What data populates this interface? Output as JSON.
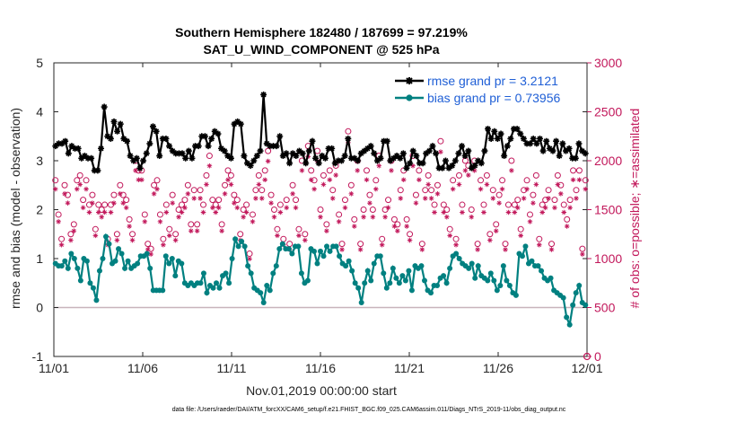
{
  "chart_data": {
    "type": "line",
    "title_line1": "Southern Hemisphere 182480 / 187699 = 97.219%",
    "title_line2": "SAT_U_WIND_COMPONENT @ 525 hPa",
    "xlabel": "Nov.01,2019 00:00:00 start",
    "ylabel_left": "rmse and bias (model - observation)",
    "ylabel_right": "# of obs: o=possible; ∗=assimilated",
    "x_tick_labels": [
      "11/01",
      "11/06",
      "11/11",
      "11/16",
      "11/21",
      "11/26",
      "12/01"
    ],
    "x_tick_days": [
      0,
      5,
      10,
      15,
      20,
      25,
      30
    ],
    "xlim": [
      0,
      30
    ],
    "ylim_left": [
      -1,
      5
    ],
    "ylim_right": [
      0,
      3000
    ],
    "y_ticks_left": [
      -1,
      0,
      1,
      2,
      3,
      4,
      5
    ],
    "y_ticks_right": [
      0,
      500,
      1000,
      1500,
      2000,
      2500,
      3000
    ],
    "footer": "data file: /Users/raeder/DAI/ATM_forcXX/CAM6_setup/f.e21.FHIST_BGC.f09_025.CAM6assim.011/Diags_NTrS_2019-11/obs_diag_output.nc",
    "legend": [
      "rmse grand pr = 3.2121",
      "bias grand pr = 0.73956"
    ],
    "colors": {
      "rmse": "#000000",
      "bias": "#008080",
      "obs": "#c2185b",
      "zero": "#c8b4bc",
      "legend_text": "#1f5fd6"
    },
    "series": [
      {
        "name": "rmse",
        "values": [
          3.3,
          3.35,
          3.35,
          3.4,
          3.15,
          3.3,
          3.25,
          3.25,
          3.05,
          3.1,
          3.05,
          3.05,
          2.8,
          2.8,
          3.25,
          4.1,
          3.5,
          3.45,
          3.8,
          3.6,
          3.75,
          3.45,
          3.4,
          3.1,
          3.0,
          3.05,
          2.85,
          3.0,
          3.15,
          3.35,
          3.7,
          3.6,
          3.1,
          3.45,
          3.45,
          3.3,
          3.2,
          3.15,
          3.15,
          3.15,
          3.05,
          3.2,
          3.05,
          3.3,
          3.3,
          3.5,
          3.5,
          3.3,
          3.45,
          3.6,
          3.55,
          3.25,
          3.2,
          3.1,
          3.05,
          3.75,
          3.8,
          3.75,
          3.1,
          2.95,
          2.9,
          3.0,
          3.1,
          3.2,
          4.35,
          3.35,
          3.3,
          3.3,
          3.3,
          3.5,
          3.1,
          3.15,
          2.95,
          3.15,
          3.1,
          3.2,
          3.15,
          2.95,
          3.2,
          3.4,
          3.05,
          2.95,
          3.1,
          3.05,
          3.25,
          3.25,
          2.95,
          3.0,
          3.0,
          3.1,
          3.45,
          3.05,
          3.05,
          3.0,
          3.15,
          3.2,
          3.25,
          3.3,
          3.15,
          3.0,
          3.05,
          3.4,
          3.4,
          3.0,
          3.05,
          3.1,
          3.05,
          3.15,
          2.85,
          2.95,
          3.2,
          3.1,
          2.95,
          2.95,
          3.15,
          3.2,
          3.3,
          3.15,
          2.85,
          2.85,
          3.0,
          2.85,
          2.9,
          3.0,
          3.15,
          3.3,
          3.1,
          3.2,
          2.85,
          2.9,
          3.0,
          2.95,
          3.2,
          3.65,
          3.45,
          3.6,
          3.45,
          3.55,
          3.1,
          3.3,
          3.45,
          3.65,
          3.65,
          3.55,
          3.45,
          3.35,
          3.35,
          3.45,
          3.35,
          3.45,
          3.2,
          3.4,
          3.25,
          3.2,
          3.4,
          3.1,
          3.35,
          3.2,
          3.25,
          3.05,
          3.05,
          3.35,
          3.2,
          3.15
        ]
      },
      {
        "name": "bias",
        "values": [
          0.9,
          0.85,
          0.85,
          0.95,
          0.8,
          1.1,
          1.0,
          0.8,
          0.55,
          1.0,
          0.95,
          0.5,
          0.4,
          0.15,
          0.75,
          1.0,
          1.45,
          1.3,
          0.9,
          0.95,
          1.2,
          1.1,
          0.8,
          0.95,
          0.8,
          0.85,
          0.9,
          1.05,
          1.05,
          1.1,
          0.8,
          0.35,
          0.35,
          0.35,
          0.35,
          1.05,
          0.9,
          1.0,
          0.65,
          0.95,
          0.9,
          0.5,
          0.45,
          0.5,
          0.45,
          0.5,
          0.5,
          0.7,
          0.3,
          0.45,
          0.4,
          0.5,
          0.4,
          0.65,
          0.7,
          0.5,
          1.0,
          1.4,
          1.25,
          1.35,
          1.25,
          0.85,
          0.7,
          0.4,
          0.35,
          0.3,
          0.1,
          0.45,
          0.35,
          0.7,
          0.85,
          1.2,
          1.3,
          1.2,
          1.2,
          1.1,
          1.25,
          1.25,
          0.7,
          0.5,
          0.55,
          1.2,
          1.15,
          0.9,
          1.15,
          1.05,
          1.25,
          1.15,
          1.25,
          1.25,
          1.05,
          0.9,
          0.85,
          0.95,
          0.75,
          0.5,
          0.4,
          0.1,
          0.5,
          0.75,
          0.55,
          0.9,
          1.05,
          1.05,
          0.7,
          0.4,
          0.5,
          0.8,
          0.6,
          0.5,
          0.65,
          0.55,
          0.75,
          0.35,
          0.85,
          0.8,
          0.85,
          0.55,
          0.35,
          0.3,
          0.45,
          0.45,
          0.6,
          0.65,
          0.5,
          0.8,
          1.05,
          1.1,
          1.0,
          0.9,
          0.85,
          0.8,
          0.9,
          0.6,
          0.85,
          0.65,
          0.6,
          0.55,
          0.7,
          0.55,
          0.35,
          0.45,
          0.85,
          0.55,
          0.45,
          0.3,
          0.25,
          1.1,
          1.05,
          1.25,
          0.9,
          0.95,
          0.85,
          0.85,
          0.75,
          0.6,
          0.55,
          0.6,
          0.35,
          0.3,
          0.25,
          0.2,
          -0.2,
          -0.35,
          0.05,
          0.3,
          0.45,
          0.1,
          0.05
        ]
      },
      {
        "name": "obs_possible",
        "values": [
          1800,
          1450,
          1200,
          1750,
          1650,
          1250,
          1350,
          1800,
          1850,
          1600,
          1800,
          1550,
          1650,
          1300,
          1550,
          1500,
          1550,
          1200,
          1550,
          1650,
          1250,
          1750,
          1650,
          1600,
          1400,
          1250,
          2000,
          1900,
          1900,
          1450,
          1150,
          1100,
          1750,
          1800,
          1450,
          1200,
          1550,
          1300,
          1650,
          1250,
          1500,
          1550,
          1600,
          1750,
          1350,
          1700,
          1350,
          1700,
          1550,
          1850,
          2050,
          1600,
          1550,
          1600,
          1350,
          1750,
          1900,
          1850,
          1650,
          1600,
          1250,
          1500,
          1550,
          1050,
          1450,
          1700,
          1850,
          1700,
          1900,
          2100,
          1650,
          1500,
          1300,
          1550,
          1200,
          1600,
          1150,
          1750,
          1600,
          1300,
          2000,
          1250,
          2150,
          1900,
          1800,
          2100,
          1500,
          1850,
          1350,
          1900,
          1700,
          1950,
          1450,
          1150,
          1600,
          2300,
          1750,
          1400,
          2000,
          1150,
          1500,
          1900,
          1650,
          1500,
          1800,
          2050,
          1200,
          1500,
          1600,
          2000,
          1400,
          1350,
          1700,
          1900,
          1400,
          1250,
          2050,
          1650,
          1900,
          1150,
          1700,
          1850,
          1700,
          1550,
          1750,
          2200,
          1550,
          1500,
          1300,
          1800,
          1200,
          1850,
          1550,
          2000,
          1950,
          1500,
          2000,
          1150,
          1800,
          1550,
          1850,
          1250,
          1700,
          1350,
          1650,
          1800,
          1150,
          1550,
          2000,
          1550,
          1600,
          1300,
          1700,
          1800,
          1450,
          1650,
          1850,
          1200,
          1550,
          1600,
          1700,
          1150,
          1600,
          1850,
          1750,
          1550,
          1400,
          1600,
          1900,
          1700,
          1900,
          1100,
          1800
        ]
      }
    ],
    "marker_density_note": "rmse and bias plotted at 6-hourly samples"
  }
}
